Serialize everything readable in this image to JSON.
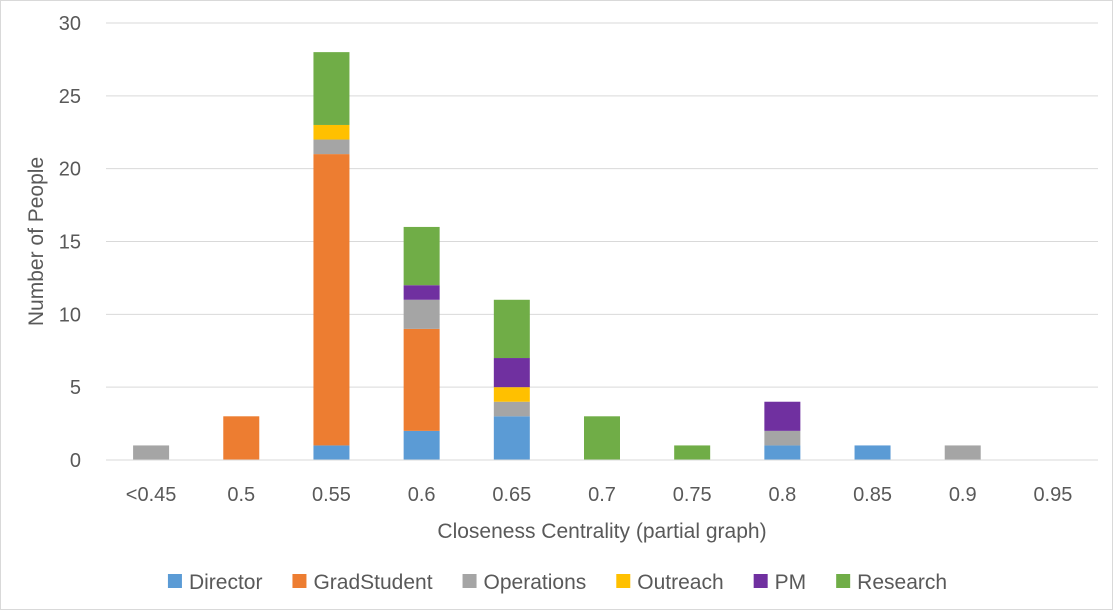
{
  "chart_data": {
    "type": "bar",
    "stacked": true,
    "categories": [
      "<0.45",
      "0.5",
      "0.55",
      "0.6",
      "0.65",
      "0.7",
      "0.75",
      "0.8",
      "0.85",
      "0.9",
      "0.95"
    ],
    "series": [
      {
        "name": "Director",
        "color": "#5b9bd5",
        "values": [
          0,
          0,
          1,
          2,
          3,
          0,
          0,
          1,
          1,
          0,
          0
        ]
      },
      {
        "name": "GradStudent",
        "color": "#ed7d31",
        "values": [
          0,
          3,
          20,
          7,
          0,
          0,
          0,
          0,
          0,
          0,
          0
        ]
      },
      {
        "name": "Operations",
        "color": "#a5a5a5",
        "values": [
          1,
          0,
          1,
          2,
          1,
          0,
          0,
          1,
          0,
          1,
          0
        ]
      },
      {
        "name": "Outreach",
        "color": "#ffc000",
        "values": [
          0,
          0,
          1,
          0,
          1,
          0,
          0,
          0,
          0,
          0,
          0
        ]
      },
      {
        "name": "PM",
        "color": "#7030a0",
        "values": [
          0,
          0,
          0,
          1,
          2,
          0,
          0,
          2,
          0,
          0,
          0
        ]
      },
      {
        "name": "Research",
        "color": "#70ad47",
        "values": [
          0,
          0,
          5,
          4,
          4,
          3,
          1,
          0,
          0,
          0,
          0
        ]
      }
    ],
    "title": "",
    "xlabel": "Closeness Centrality (partial graph)",
    "ylabel": "Number of People",
    "ylim": [
      0,
      30
    ],
    "yticks": [
      0,
      5,
      10,
      15,
      20,
      25,
      30
    ],
    "grid": true,
    "legend": "bottom"
  }
}
